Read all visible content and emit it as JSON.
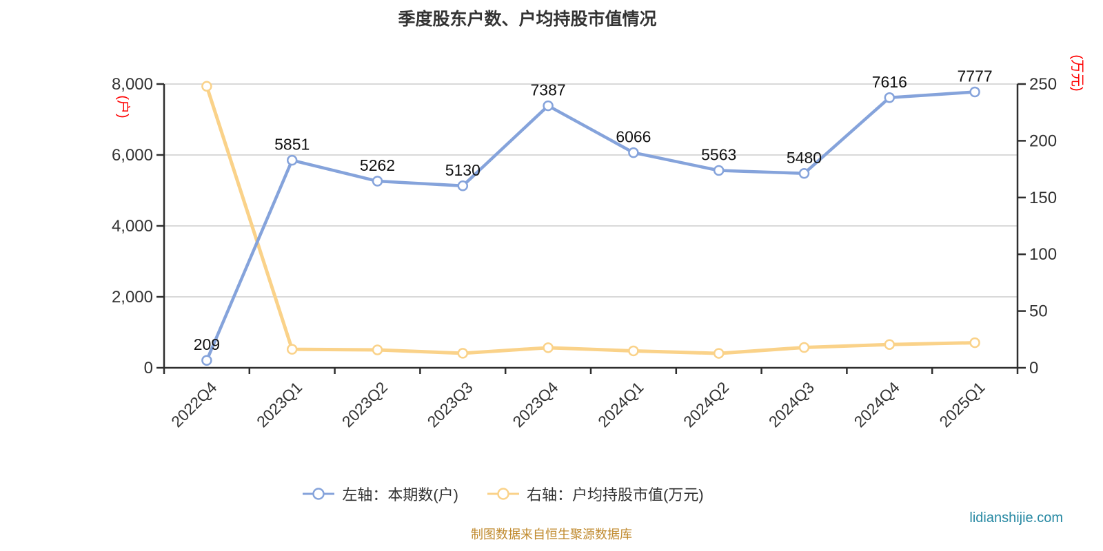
{
  "header": {
    "title": "季度股东户数、户均持股市值情况"
  },
  "chart_data": {
    "type": "line",
    "categories": [
      "2022Q4",
      "2023Q1",
      "2023Q2",
      "2023Q3",
      "2023Q4",
      "2024Q1",
      "2024Q2",
      "2024Q3",
      "2024Q4",
      "2025Q1"
    ],
    "series": [
      {
        "name": "左轴：本期数(户)",
        "axis": "left",
        "color": "#85A3DB",
        "marker": "hollow-circle",
        "show_labels": true,
        "values": [
          209,
          5851,
          5262,
          5130,
          7387,
          6066,
          5563,
          5480,
          7616,
          7777
        ]
      },
      {
        "name": "右轴：户均持股市值(万元)",
        "axis": "right",
        "color": "#FAD289",
        "marker": "hollow-circle",
        "show_labels": false,
        "values": [
          248,
          16.3,
          15.8,
          12.8,
          17.7,
          14.9,
          12.7,
          17.9,
          20.5,
          22.1
        ]
      }
    ],
    "left_axis": {
      "unit": "(户)",
      "min": 0,
      "max": 8000,
      "ticks": [
        0,
        2000,
        4000,
        6000,
        8000
      ]
    },
    "right_axis": {
      "unit": "(万元)",
      "min": 0,
      "max": 250,
      "ticks": [
        0,
        50,
        100,
        150,
        200,
        250
      ]
    },
    "grid": true,
    "legend_position": "bottom",
    "title": "季度股东户数、户均持股市值情况"
  },
  "legend": {
    "items": [
      {
        "label": "左轴：本期数(户)"
      },
      {
        "label": "右轴：户均持股市值(万元)"
      }
    ]
  },
  "footer": {
    "source_note": "制图数据来自恒生聚源数据库",
    "watermark": "lidianshijie.com"
  },
  "colors": {
    "series_blue": "#85A3DB",
    "series_yellow": "#FAD289",
    "axis_line": "#2E2E2E",
    "grid_line": "#D9D9D9",
    "tick_label": "#333333",
    "data_label": "#111111",
    "unit_label": "#FF0000",
    "title": "#333333",
    "source_note": "#C08A2E",
    "watermark": "#2789A3",
    "background": "#FFFFFF"
  }
}
